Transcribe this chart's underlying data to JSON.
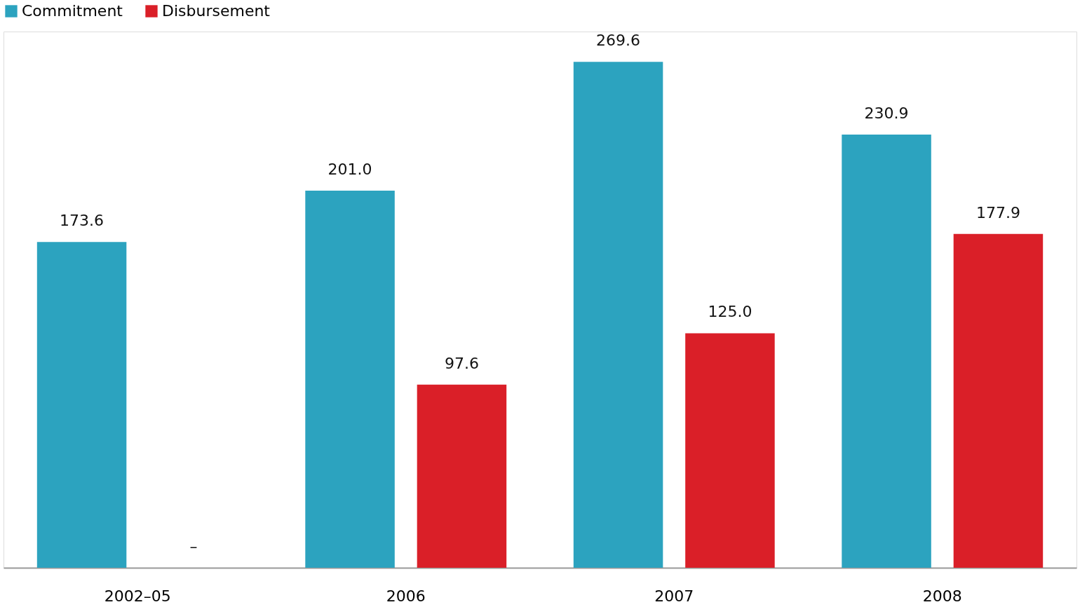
{
  "chart_data": {
    "type": "bar",
    "categories": [
      "2002–05",
      "2006",
      "2007",
      "2008"
    ],
    "series": [
      {
        "name": "Commitment",
        "color": "#2ca3bf",
        "values": [
          173.6,
          201.0,
          269.6,
          230.9
        ],
        "value_labels": [
          "173.6",
          "201.0",
          "269.6",
          "230.9"
        ]
      },
      {
        "name": "Disbursement",
        "color": "#da1f28",
        "values": [
          null,
          97.6,
          125.0,
          177.9
        ],
        "value_labels": [
          "–",
          "97.6",
          "125.0",
          "177.9"
        ]
      }
    ],
    "legend": "top",
    "grid": false
  }
}
